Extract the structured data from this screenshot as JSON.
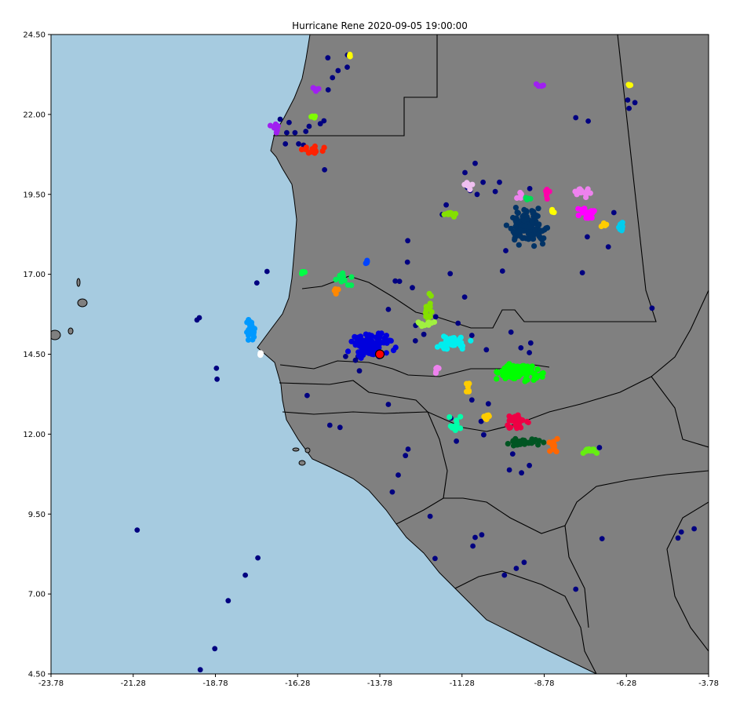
{
  "title": "Hurricane Rene 2020-09-05 19:00:00",
  "colors": {
    "ocean": "#a6cbe0",
    "land": "#808080",
    "border": "#000000",
    "storm_marker": "#ff0000",
    "scatter_points": "#000080"
  },
  "chart_data": {
    "type": "scatter",
    "projection": "PlateCarree",
    "xlim": [
      -23.78,
      -3.78
    ],
    "ylim": [
      4.5,
      24.5
    ],
    "x_ticks": [
      "-23.78",
      "-21.28",
      "-18.78",
      "-16.28",
      "-13.78",
      "-11.28",
      "-8.78",
      "-6.28",
      "-3.78"
    ],
    "y_ticks": [
      "4.50",
      "7.00",
      "9.50",
      "12.00",
      "14.50",
      "17.00",
      "19.50",
      "22.00",
      "24.50"
    ],
    "storm_center": {
      "lon": -13.78,
      "lat": 14.5
    },
    "scattered_points": [
      [
        -15.36,
        23.77
      ],
      [
        -15.05,
        23.37
      ],
      [
        -14.77,
        23.48
      ],
      [
        -15.22,
        23.15
      ],
      [
        -15.35,
        22.77
      ],
      [
        -14.76,
        23.86
      ],
      [
        -16.81,
        21.85
      ],
      [
        -16.54,
        21.75
      ],
      [
        -16.61,
        21.43
      ],
      [
        -16.36,
        21.43
      ],
      [
        -16.25,
        21.08
      ],
      [
        -15.93,
        21.63
      ],
      [
        -16.03,
        21.47
      ],
      [
        -15.59,
        21.71
      ],
      [
        -15.48,
        21.8
      ],
      [
        -16.1,
        21.04
      ],
      [
        -15.46,
        20.27
      ],
      [
        -16.65,
        21.08
      ],
      [
        -7.82,
        21.9
      ],
      [
        -7.44,
        21.79
      ],
      [
        -6.24,
        22.45
      ],
      [
        -6.2,
        22.19
      ],
      [
        -6.02,
        22.37
      ],
      [
        -10.88,
        20.47
      ],
      [
        -11.19,
        20.18
      ],
      [
        -10.64,
        19.88
      ],
      [
        -10.14,
        19.88
      ],
      [
        -10.27,
        19.59
      ],
      [
        -11.11,
        19.71
      ],
      [
        -11.03,
        19.62
      ],
      [
        -10.82,
        19.5
      ],
      [
        -11.76,
        19.17
      ],
      [
        -11.88,
        18.87
      ],
      [
        -9.22,
        19.68
      ],
      [
        -9.67,
        18.3
      ],
      [
        -7.47,
        18.17
      ],
      [
        -6.66,
        18.93
      ],
      [
        -6.83,
        17.86
      ],
      [
        -9.95,
        17.74
      ],
      [
        -10.05,
        17.1
      ],
      [
        -7.62,
        17.05
      ],
      [
        -12.93,
        18.05
      ],
      [
        -13.18,
        16.78
      ],
      [
        -12.94,
        17.38
      ],
      [
        -13.31,
        16.79
      ],
      [
        -12.79,
        16.58
      ],
      [
        -11.64,
        17.02
      ],
      [
        -11.2,
        16.29
      ],
      [
        -17.21,
        17.09
      ],
      [
        -17.52,
        16.73
      ],
      [
        -13.52,
        15.9
      ],
      [
        -12.69,
        15.4
      ],
      [
        -12.44,
        15.12
      ],
      [
        -12.7,
        14.92
      ],
      [
        -12.08,
        15.67
      ],
      [
        -11.4,
        15.47
      ],
      [
        -11.32,
        14.83
      ],
      [
        -10.98,
        15.09
      ],
      [
        -10.54,
        14.64
      ],
      [
        -9.79,
        15.19
      ],
      [
        -9.49,
        14.7
      ],
      [
        -9.23,
        14.55
      ],
      [
        -9.19,
        14.85
      ],
      [
        -14.52,
        14.31
      ],
      [
        -14.82,
        14.43
      ],
      [
        -14.44,
        14.43
      ],
      [
        -14.4,
        13.98
      ],
      [
        -13.52,
        12.93
      ],
      [
        -15.99,
        13.21
      ],
      [
        -15.3,
        12.28
      ],
      [
        -14.99,
        12.21
      ],
      [
        -10.98,
        13.07
      ],
      [
        -10.48,
        12.95
      ],
      [
        -10.7,
        12.4
      ],
      [
        -10.62,
        11.98
      ],
      [
        -11.45,
        11.78
      ],
      [
        -11.62,
        12.5
      ],
      [
        -12.92,
        11.53
      ],
      [
        -13.0,
        11.33
      ],
      [
        -13.22,
        10.72
      ],
      [
        -13.4,
        10.19
      ],
      [
        -12.25,
        9.43
      ],
      [
        -10.88,
        8.77
      ],
      [
        -10.95,
        8.5
      ],
      [
        -10.68,
        8.85
      ],
      [
        -12.1,
        8.11
      ],
      [
        -9.99,
        7.59
      ],
      [
        -9.63,
        7.8
      ],
      [
        -9.39,
        7.99
      ],
      [
        -9.23,
        11.02
      ],
      [
        -9.47,
        10.79
      ],
      [
        -9.74,
        11.38
      ],
      [
        -9.84,
        10.88
      ],
      [
        -7.1,
        11.58
      ],
      [
        -7.82,
        7.15
      ],
      [
        -7.02,
        8.73
      ],
      [
        -4.61,
        8.94
      ],
      [
        -4.71,
        8.75
      ],
      [
        -4.22,
        9.04
      ],
      [
        -5.5,
        15.94
      ],
      [
        -18.75,
        14.06
      ],
      [
        -18.73,
        13.72
      ],
      [
        -19.34,
        15.57
      ],
      [
        -19.27,
        15.64
      ],
      [
        -21.16,
        9.0
      ],
      [
        -17.49,
        8.13
      ],
      [
        -17.87,
        7.59
      ],
      [
        -18.39,
        6.79
      ],
      [
        -18.8,
        5.29
      ],
      [
        -19.24,
        4.63
      ]
    ],
    "clusters": [
      {
        "color": "#ffff00",
        "lon": -14.72,
        "lat": 23.84,
        "spread": [
          0.05,
          0.08
        ],
        "count": 4
      },
      {
        "color": "#a020f0",
        "lon": -15.7,
        "lat": 22.79,
        "spread": [
          0.13,
          0.06
        ],
        "count": 6
      },
      {
        "color": "#a020f0",
        "lon": -8.89,
        "lat": 22.88,
        "spread": [
          0.15,
          0.05
        ],
        "count": 5
      },
      {
        "color": "#ffff00",
        "lon": -6.2,
        "lat": 22.93,
        "spread": [
          0.06,
          0.03
        ],
        "count": 3
      },
      {
        "color": "#a020f0",
        "lon": -16.92,
        "lat": 21.55,
        "spread": [
          0.12,
          0.18
        ],
        "count": 10
      },
      {
        "color": "#7fff00",
        "lon": -15.85,
        "lat": 21.91,
        "spread": [
          0.1,
          0.05
        ],
        "count": 4
      },
      {
        "color": "#ff2200",
        "lon": -15.91,
        "lat": 20.92,
        "spread": [
          0.32,
          0.1
        ],
        "count": 14
      },
      {
        "color": "#f0c0f0",
        "lon": -10.97,
        "lat": 19.76,
        "spread": [
          0.22,
          0.1
        ],
        "count": 8
      },
      {
        "color": "#ee82ee",
        "lon": -9.54,
        "lat": 19.45,
        "spread": [
          0.1,
          0.08
        ],
        "count": 5
      },
      {
        "color": "#00dd55",
        "lon": -9.26,
        "lat": 19.38,
        "spread": [
          0.07,
          0.06
        ],
        "count": 4
      },
      {
        "color": "#ff00aa",
        "lon": -8.68,
        "lat": 19.48,
        "spread": [
          0.1,
          0.15
        ],
        "count": 6
      },
      {
        "color": "#ffff00",
        "lon": -8.53,
        "lat": 19.0,
        "spread": [
          0.07,
          0.1
        ],
        "count": 4
      },
      {
        "color": "#ee82ee",
        "lon": -7.75,
        "lat": 19.56,
        "spread": [
          0.3,
          0.1
        ],
        "count": 14
      },
      {
        "color": "#ff00ff",
        "lon": -7.42,
        "lat": 18.95,
        "spread": [
          0.25,
          0.18
        ],
        "count": 18
      },
      {
        "color": "#ffcc00",
        "lon": -6.95,
        "lat": 18.55,
        "spread": [
          0.06,
          0.08
        ],
        "count": 5
      },
      {
        "color": "#00ccee",
        "lon": -6.46,
        "lat": 18.47,
        "spread": [
          0.13,
          0.1
        ],
        "count": 10
      },
      {
        "color": "#84e000",
        "lon": -11.66,
        "lat": 18.88,
        "spread": [
          0.22,
          0.08
        ],
        "count": 10
      },
      {
        "color": "#003366",
        "lon": -9.25,
        "lat": 18.47,
        "spread": [
          0.45,
          0.4
        ],
        "count": 120
      },
      {
        "color": "#0044ff",
        "lon": -14.14,
        "lat": 17.38,
        "spread": [
          0.07,
          0.05
        ],
        "count": 5
      },
      {
        "color": "#00ff44",
        "lon": -16.12,
        "lat": 17.05,
        "spread": [
          0.05,
          0.05
        ],
        "count": 4
      },
      {
        "color": "#00ee55",
        "lon": -14.9,
        "lat": 16.84,
        "spread": [
          0.2,
          0.15
        ],
        "count": 15
      },
      {
        "color": "#ff8800",
        "lon": -15.11,
        "lat": 16.48,
        "spread": [
          0.1,
          0.1
        ],
        "count": 6
      },
      {
        "color": "#84e000",
        "lon": -12.31,
        "lat": 15.95,
        "spread": [
          0.1,
          0.35
        ],
        "count": 14
      },
      {
        "color": "#a0f040",
        "lon": -12.49,
        "lat": 15.43,
        "spread": [
          0.25,
          0.08
        ],
        "count": 12
      },
      {
        "color": "#0099ff",
        "lon": -17.72,
        "lat": 15.22,
        "spread": [
          0.12,
          0.3
        ],
        "count": 30
      },
      {
        "color": "#ffffff",
        "lon": -17.42,
        "lat": 14.5,
        "spread": [
          0.07,
          0.05
        ],
        "count": 4
      },
      {
        "color": "#0000dd",
        "lon": -14.05,
        "lat": 14.8,
        "spread": [
          0.5,
          0.3
        ],
        "count": 100
      },
      {
        "color": "#00eeee",
        "lon": -11.55,
        "lat": 14.87,
        "spread": [
          0.4,
          0.2
        ],
        "count": 40
      },
      {
        "color": "#00ff00",
        "lon": -9.48,
        "lat": 13.93,
        "spread": [
          0.5,
          0.25
        ],
        "count": 90
      },
      {
        "color": "#ee82ee",
        "lon": -12.05,
        "lat": 13.98,
        "spread": [
          0.07,
          0.12
        ],
        "count": 6
      },
      {
        "color": "#ffcc00",
        "lon": -11.09,
        "lat": 13.44,
        "spread": [
          0.06,
          0.16
        ],
        "count": 6
      },
      {
        "color": "#ffcc00",
        "lon": -10.53,
        "lat": 12.53,
        "spread": [
          0.1,
          0.1
        ],
        "count": 7
      },
      {
        "color": "#00ffaa",
        "lon": -11.48,
        "lat": 12.3,
        "spread": [
          0.15,
          0.25
        ],
        "count": 14
      },
      {
        "color": "#ee0044",
        "lon": -9.6,
        "lat": 12.36,
        "spread": [
          0.3,
          0.2
        ],
        "count": 30
      },
      {
        "color": "#005522",
        "lon": -9.42,
        "lat": 11.75,
        "spread": [
          0.4,
          0.1
        ],
        "count": 30
      },
      {
        "color": "#ff6600",
        "lon": -8.51,
        "lat": 11.65,
        "spread": [
          0.15,
          0.2
        ],
        "count": 14
      },
      {
        "color": "#66ee11",
        "lon": -7.33,
        "lat": 11.49,
        "spread": [
          0.25,
          0.08
        ],
        "count": 14
      }
    ]
  }
}
